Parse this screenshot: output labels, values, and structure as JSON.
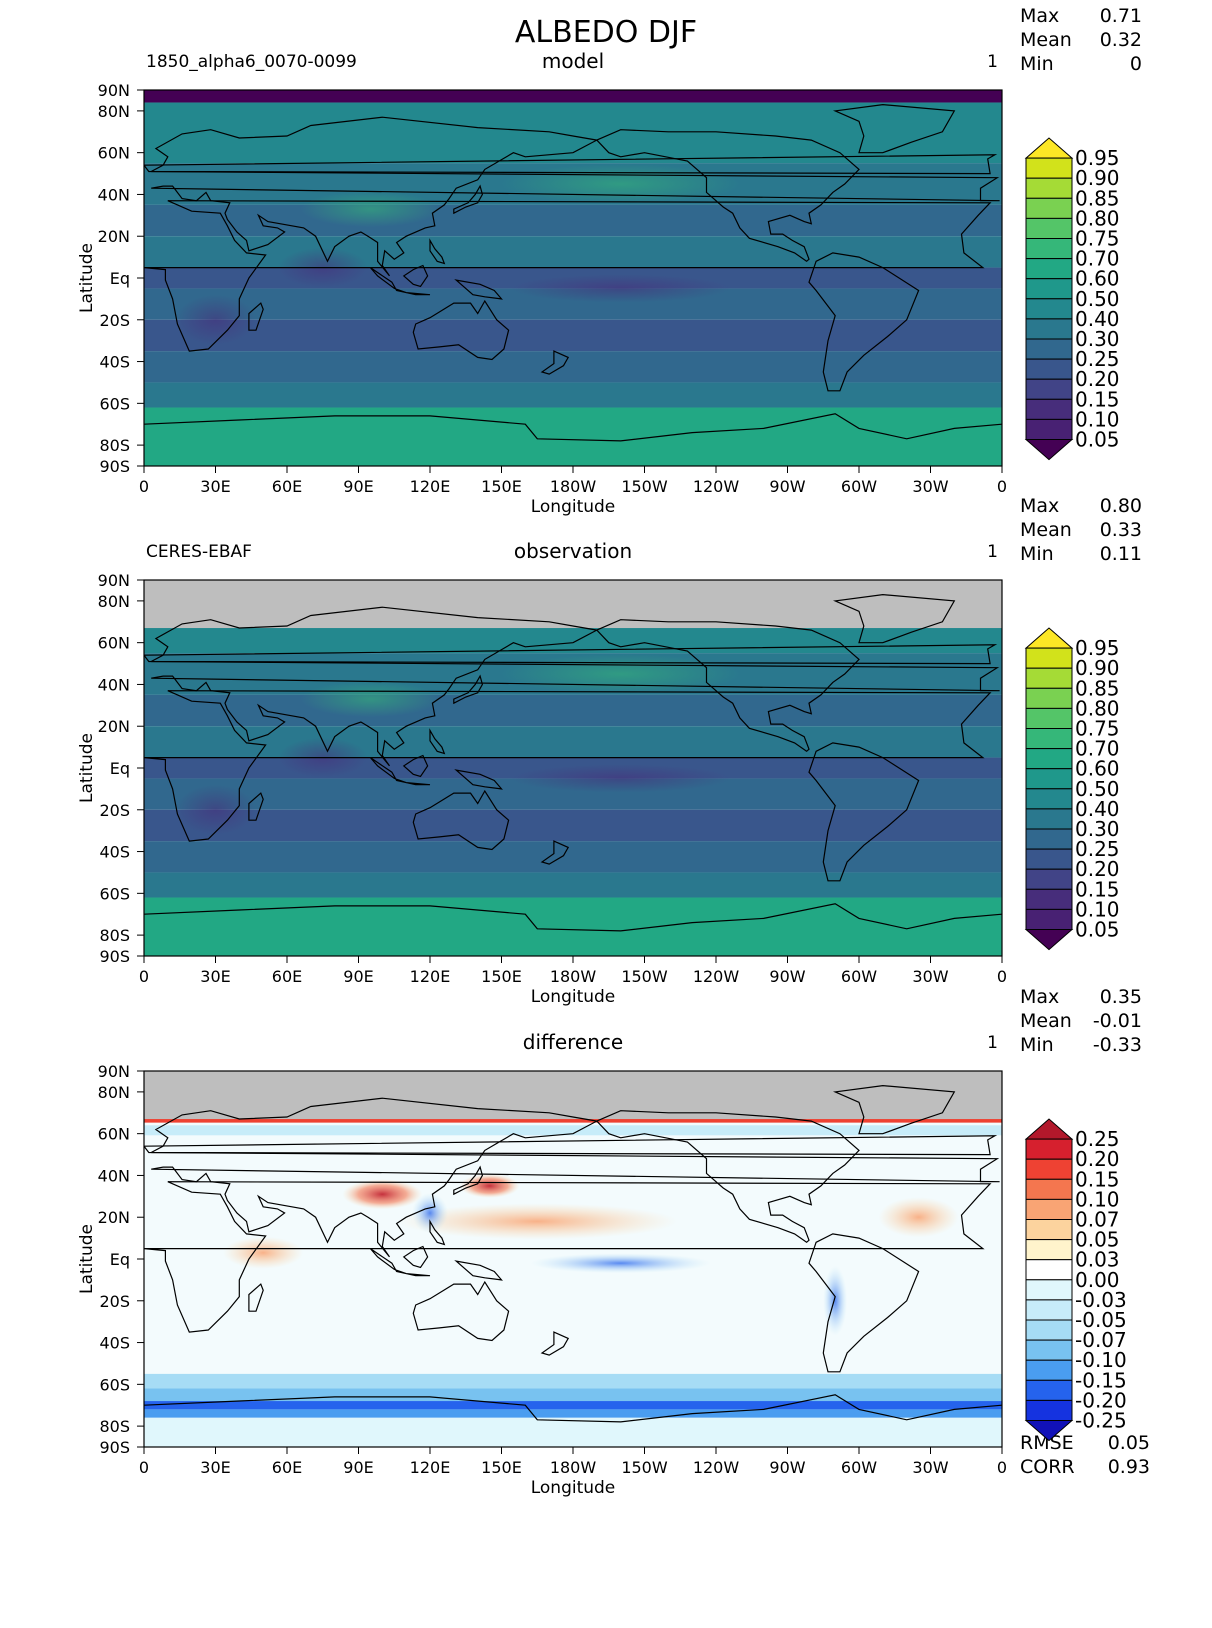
{
  "figure": {
    "title": "ALBEDO DJF",
    "longitude_label": "Longitude",
    "latitude_label": "Latitude",
    "lon_ticks": [
      "0",
      "30E",
      "60E",
      "90E",
      "120E",
      "150E",
      "180W",
      "150W",
      "120W",
      "90W",
      "60W",
      "30W",
      "0"
    ],
    "lat_ticks": [
      "90N",
      "80N",
      "60N",
      "40N",
      "20N",
      "Eq",
      "20S",
      "40S",
      "60S",
      "80S",
      "90S"
    ]
  },
  "panels": [
    {
      "id": "model",
      "left_label": "1850_alpha6_0070-0099",
      "center_label": "model",
      "right_label": "1",
      "stats": [
        {
          "label": "Max",
          "value": "0.71"
        },
        {
          "label": "Mean",
          "value": "0.32"
        },
        {
          "label": "Min",
          "value": "0"
        }
      ],
      "colorbar": [
        "0.95",
        "0.90",
        "0.85",
        "0.80",
        "0.75",
        "0.70",
        "0.60",
        "0.50",
        "0.40",
        "0.30",
        "0.25",
        "0.20",
        "0.15",
        "0.10",
        "0.05"
      ],
      "colors": [
        "#fde725",
        "#d2e21b",
        "#a5db36",
        "#7ad151",
        "#54c568",
        "#35b779",
        "#22a884",
        "#1f988b",
        "#23888e",
        "#2a788e",
        "#31688e",
        "#39568c",
        "#414487",
        "#472d7b",
        "#482173",
        "#440154"
      ],
      "missing_north_of": null
    },
    {
      "id": "observation",
      "left_label": "CERES-EBAF",
      "center_label": "observation",
      "right_label": "1",
      "stats": [
        {
          "label": "Max",
          "value": "0.80"
        },
        {
          "label": "Mean",
          "value": "0.33"
        },
        {
          "label": "Min",
          "value": "0.11"
        }
      ],
      "colorbar": [
        "0.95",
        "0.90",
        "0.85",
        "0.80",
        "0.75",
        "0.70",
        "0.60",
        "0.50",
        "0.40",
        "0.30",
        "0.25",
        "0.20",
        "0.15",
        "0.10",
        "0.05"
      ],
      "colors": [
        "#fde725",
        "#d2e21b",
        "#a5db36",
        "#7ad151",
        "#54c568",
        "#35b779",
        "#22a884",
        "#1f988b",
        "#23888e",
        "#2a788e",
        "#31688e",
        "#39568c",
        "#414487",
        "#472d7b",
        "#482173",
        "#440154"
      ],
      "missing_north_of": 67
    },
    {
      "id": "difference",
      "left_label": "",
      "center_label": "difference",
      "right_label": "1",
      "stats": [
        {
          "label": "Max",
          "value": "0.35"
        },
        {
          "label": "Mean",
          "value": "-0.01"
        },
        {
          "label": "Min",
          "value": "-0.33"
        }
      ],
      "extra_stats": [
        {
          "label": "RMSE",
          "value": "0.05"
        },
        {
          "label": "CORR",
          "value": "0.93"
        }
      ],
      "colorbar": [
        "0.25",
        "0.20",
        "0.15",
        "0.10",
        "0.07",
        "0.05",
        "0.03",
        "0.00",
        "-0.03",
        "-0.05",
        "-0.07",
        "-0.10",
        "-0.15",
        "-0.20",
        "-0.25"
      ],
      "colors": [
        "#b2182b",
        "#d6202e",
        "#ee4233",
        "#f4764f",
        "#f9a474",
        "#fcd39e",
        "#fff4cc",
        "#ffffff",
        "#e0f7fc",
        "#c7ecf9",
        "#a6dcf5",
        "#78c2f0",
        "#4a9df0",
        "#2563ed",
        "#1533e0",
        "#1111b8"
      ],
      "missing_north_of": 67
    }
  ]
}
